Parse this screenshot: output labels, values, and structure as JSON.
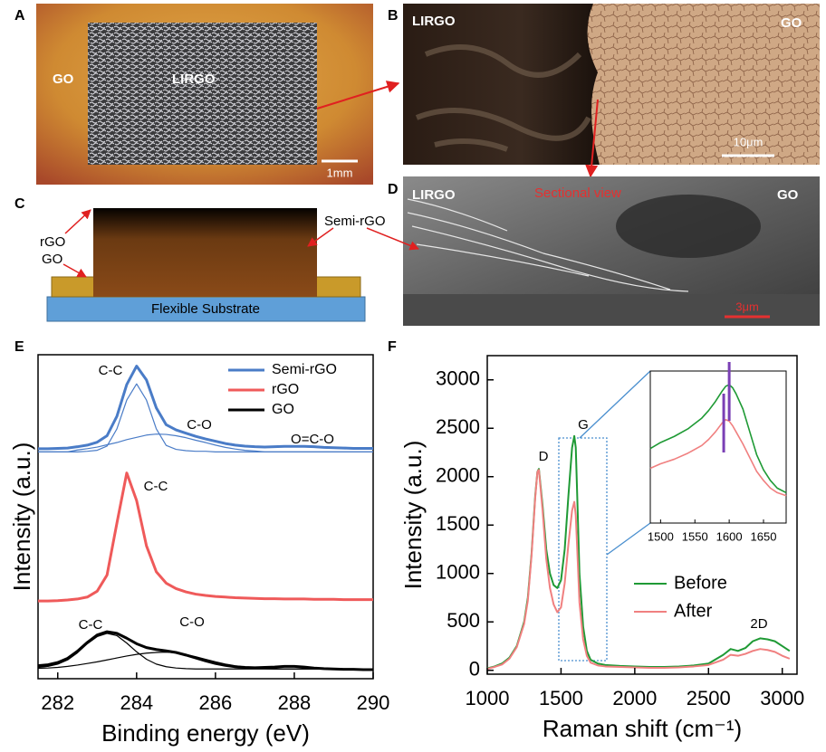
{
  "panels": {
    "labels": [
      "A",
      "B",
      "C",
      "D",
      "E",
      "F"
    ]
  },
  "images": {
    "a": {
      "left": "GO",
      "center": "LIRGO",
      "scale": "1mm"
    },
    "b": {
      "left": "LIRGO",
      "right": "GO",
      "scale": "10μm"
    },
    "c": {
      "rgo": "rGO",
      "go": "GO",
      "semi": "Semi-rGO",
      "substrate": "Flexible Substrate"
    },
    "d": {
      "left": "LIRGO",
      "center": "Sectional view",
      "right": "GO",
      "scale": "3μm"
    }
  },
  "chart_data": [
    {
      "type": "line",
      "xlabel": "Binding energy (eV)",
      "ylabel": "Intensity (a.u.)",
      "x": [
        281.5,
        281.75,
        282,
        282.25,
        282.5,
        282.75,
        283,
        283.25,
        283.5,
        283.75,
        284,
        284.25,
        284.5,
        284.75,
        285,
        285.25,
        285.5,
        285.75,
        286,
        286.25,
        286.5,
        286.75,
        287,
        287.25,
        287.5,
        287.75,
        288,
        288.25,
        288.5,
        288.75,
        289,
        289.25,
        289.5,
        289.75,
        290
      ],
      "xlim": [
        281.5,
        290
      ],
      "xticks": [
        282,
        284,
        286,
        288,
        290
      ],
      "ylim": [
        0,
        100
      ],
      "legend": "upper right",
      "series": [
        {
          "name": "Semi-rGO",
          "color": "#4a7cc7",
          "values": [
            71,
            71,
            71.1,
            71.2,
            71.6,
            72.1,
            73,
            75,
            81,
            90.8,
            96.5,
            92.2,
            83.6,
            78.4,
            76.8,
            75.8,
            74.8,
            74,
            73.3,
            72.6,
            72.1,
            71.8,
            71.6,
            71.5,
            71.6,
            71.7,
            71.7,
            71.7,
            71.6,
            71.4,
            71.3,
            71.2,
            71.1,
            71.1,
            71.1
          ]
        },
        {
          "name": "rGO",
          "color": "#ef5a5a",
          "values": [
            24,
            24,
            24.1,
            24.3,
            24.6,
            25.2,
            27,
            32,
            48,
            63.5,
            55,
            41,
            33,
            29.5,
            27.8,
            26.8,
            26.1,
            25.7,
            25.4,
            25.2,
            25,
            24.9,
            24.8,
            24.7,
            24.7,
            24.6,
            24.6,
            24.6,
            24.5,
            24.5,
            24.5,
            24.4,
            24.4,
            24.4,
            24.4
          ]
        },
        {
          "name": "GO",
          "color": "#000000",
          "values": [
            4,
            4.3,
            5,
            6.3,
            8.5,
            11.2,
            13.5,
            14.5,
            14,
            12.5,
            10.8,
            9.6,
            9,
            8.6,
            8.1,
            7.3,
            6.4,
            5.5,
            4.7,
            4.1,
            3.7,
            3.5,
            3.4,
            3.5,
            3.6,
            3.8,
            3.8,
            3.6,
            3.3,
            3.1,
            3,
            2.9,
            2.9,
            2.8,
            2.8
          ]
        }
      ],
      "fits": [
        {
          "color": "#4a7cc7",
          "values": [
            70,
            70,
            70,
            70,
            70,
            70.2,
            70.5,
            71.8,
            77.1,
            86,
            91,
            86,
            77.1,
            72,
            70.8,
            70.4,
            70.2,
            70.2,
            70,
            70,
            70,
            70,
            70,
            70,
            70,
            70,
            70,
            70,
            70,
            70,
            70,
            70,
            70,
            70,
            70
          ]
        },
        {
          "color": "#4a7cc7",
          "values": [
            70,
            70,
            70,
            70,
            70.6,
            71,
            71.5,
            72.2,
            72.9,
            73.8,
            74.5,
            75.2,
            75.5,
            75.4,
            75,
            74.4,
            73.6,
            72.9,
            72.1,
            71.4,
            70.9,
            70.5,
            70.3,
            70,
            70,
            70,
            70,
            70,
            70,
            70,
            70,
            70,
            70,
            70,
            70
          ]
        },
        {
          "color": "#000000",
          "values": [
            3.5,
            3.8,
            4.5,
            5.8,
            8,
            10.8,
            13,
            14,
            13.3,
            11,
            8.3,
            6,
            4.5,
            3.7,
            3.3,
            3.1,
            3,
            3,
            3,
            3,
            3,
            3,
            3,
            3,
            3,
            3,
            3,
            3,
            3,
            3,
            3,
            3,
            3,
            3,
            3
          ]
        },
        {
          "color": "#000000",
          "values": [
            3.2,
            3.3,
            3.5,
            3.8,
            4.2,
            4.7,
            5.2,
            5.8,
            6.4,
            7,
            7.5,
            7.9,
            8.1,
            8.2,
            8,
            7.5,
            6.8,
            6,
            5.2,
            4.5,
            4,
            3.6,
            3.3,
            3.1,
            3,
            3,
            3,
            3,
            3,
            3,
            3,
            3,
            3,
            3,
            3
          ]
        }
      ],
      "annotations": [
        "C-C",
        "C-O",
        "O=C-O",
        "C-C",
        "C-C",
        "C-O"
      ]
    },
    {
      "type": "line",
      "xlabel": "Raman shift (cm⁻¹)",
      "ylabel": "Intensity (a.u.)",
      "x": [
        1000,
        1050,
        1100,
        1150,
        1200,
        1250,
        1275,
        1300,
        1325,
        1340,
        1350,
        1375,
        1400,
        1425,
        1450,
        1475,
        1500,
        1525,
        1550,
        1575,
        1590,
        1600,
        1610,
        1625,
        1650,
        1675,
        1700,
        1750,
        1800,
        1900,
        2000,
        2100,
        2200,
        2300,
        2400,
        2500,
        2600,
        2650,
        2700,
        2750,
        2800,
        2850,
        2900,
        2950,
        3000,
        3050
      ],
      "xlim": [
        1000,
        3100
      ],
      "xticks": [
        1000,
        1500,
        2000,
        2500,
        3000
      ],
      "ylim": [
        -40,
        3250
      ],
      "yticks": [
        0,
        500,
        1000,
        1500,
        2000,
        2500,
        3000
      ],
      "legend": "center right",
      "series": [
        {
          "name": "Before",
          "color": "#1f9a35",
          "values": [
            20,
            40,
            70,
            130,
            250,
            500,
            750,
            1200,
            1800,
            2050,
            2080,
            1700,
            1250,
            1000,
            880,
            850,
            930,
            1250,
            1800,
            2300,
            2420,
            2300,
            1800,
            1000,
            450,
            200,
            110,
            70,
            55,
            45,
            40,
            35,
            35,
            40,
            50,
            70,
            160,
            220,
            200,
            230,
            300,
            330,
            320,
            300,
            250,
            200
          ]
        },
        {
          "name": "After",
          "color": "#f08080",
          "values": [
            15,
            35,
            60,
            120,
            240,
            480,
            720,
            1180,
            1780,
            2050,
            2070,
            1650,
            1150,
            850,
            680,
            600,
            650,
            900,
            1300,
            1650,
            1740,
            1600,
            1250,
            700,
            320,
            150,
            80,
            50,
            40,
            35,
            30,
            25,
            25,
            30,
            40,
            55,
            110,
            160,
            150,
            170,
            200,
            220,
            210,
            190,
            150,
            120
          ]
        }
      ],
      "annotations": [
        "D",
        "G",
        "2D"
      ]
    },
    {
      "type": "line",
      "x": [
        1485,
        1500,
        1520,
        1540,
        1560,
        1570,
        1580,
        1590,
        1595,
        1600,
        1605,
        1610,
        1620,
        1630,
        1640,
        1650,
        1660,
        1670,
        1683
      ],
      "xlim": [
        1485,
        1683
      ],
      "xticks": [
        1500,
        1550,
        1600,
        1650
      ],
      "ylim": [
        0,
        100
      ],
      "series": [
        {
          "color": "#1f9a35",
          "values": [
            49,
            53,
            57,
            62,
            69,
            74,
            80,
            87,
            90,
            91,
            89,
            85,
            75,
            60,
            45,
            35,
            28,
            23,
            20
          ]
        },
        {
          "color": "#f08080",
          "values": [
            36,
            39,
            42,
            46,
            51,
            55,
            60,
            66,
            68,
            67,
            64,
            60,
            52,
            43,
            34,
            28,
            23,
            20,
            18
          ]
        }
      ],
      "markers": {
        "x": [
          1592,
          1600
        ],
        "color": "#7a3fb5"
      }
    }
  ]
}
